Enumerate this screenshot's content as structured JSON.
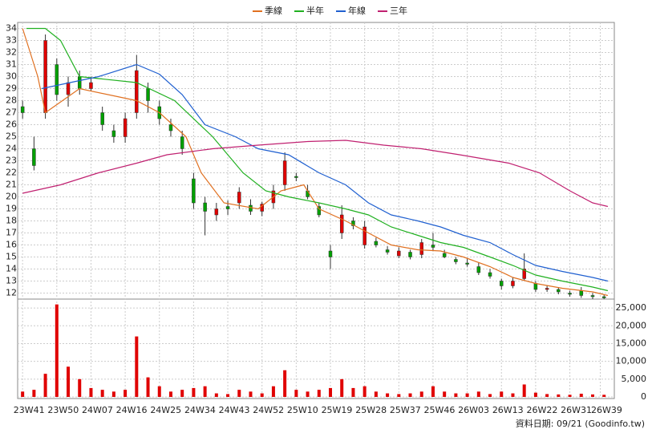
{
  "chart_data": {
    "type": "candlestick",
    "x": [
      0,
      3,
      6,
      9,
      12,
      15,
      18,
      21,
      24,
      27,
      30,
      33,
      36,
      39,
      42,
      45,
      48,
      51,
      54,
      57,
      60,
      63,
      66,
      69,
      72,
      75,
      78,
      81,
      84,
      87,
      90,
      93,
      96,
      99,
      102,
      105,
      108,
      111,
      114,
      117,
      120,
      123,
      126,
      129,
      132,
      135,
      138,
      141,
      144,
      147,
      150,
      153
    ],
    "open": [
      27.5,
      24,
      27,
      31,
      28.5,
      30,
      29,
      27,
      25.5,
      25,
      27,
      29,
      27.5,
      26,
      25,
      21.5,
      19.5,
      18.5,
      19.2,
      19.5,
      19.3,
      18.8,
      19.5,
      21,
      21.7,
      20.5,
      19.2,
      15.5,
      17,
      18,
      16,
      16.3,
      15.6,
      15.1,
      15.4,
      15.2,
      16,
      15.3,
      14.8,
      14.5,
      14.2,
      13.7,
      13,
      12.6,
      13.2,
      12.8,
      12.3,
      12.3,
      12,
      12.2,
      11.8,
      11.7
    ],
    "high": [
      28,
      25,
      33.5,
      31.5,
      30,
      30.5,
      30,
      27.5,
      26,
      27,
      31.8,
      29.5,
      28,
      26.5,
      25.5,
      22,
      20,
      19.5,
      19.7,
      20.8,
      19.8,
      19.6,
      21,
      23.7,
      22,
      21,
      19.5,
      16,
      19.3,
      18.3,
      18,
      16.6,
      15.9,
      15.8,
      15.6,
      16.5,
      17,
      15.6,
      15,
      14.9,
      14.5,
      14,
      13.2,
      13.3,
      15.3,
      13,
      12.6,
      12.5,
      12.2,
      12.5,
      12,
      11.9
    ],
    "low": [
      26.5,
      22.2,
      26.5,
      28,
      27.5,
      28.5,
      28.8,
      25.5,
      24.5,
      24.5,
      26.5,
      27,
      26,
      25,
      23.5,
      19,
      16.8,
      18,
      18.5,
      19,
      18.5,
      18.4,
      19,
      20.5,
      21.3,
      19.8,
      18.3,
      14,
      16.5,
      17.3,
      15.7,
      15.8,
      15.2,
      14.9,
      14.8,
      14.9,
      15.5,
      14.9,
      14.4,
      14.2,
      13.5,
      13.2,
      12.3,
      12.4,
      13,
      12.1,
      12.1,
      11.9,
      11.7,
      11.6,
      11.5,
      11.5
    ],
    "close": [
      27,
      22.6,
      33,
      28.5,
      29.5,
      29,
      29.5,
      26,
      25,
      26.5,
      30.5,
      28,
      26.5,
      25.5,
      24,
      19.5,
      18.8,
      19,
      19,
      20.4,
      18.8,
      19.4,
      20.5,
      23,
      21.6,
      20,
      18.5,
      15,
      18.5,
      17.6,
      17.5,
      16,
      15.4,
      15.5,
      15,
      16.2,
      15.8,
      15,
      14.6,
      14.4,
      13.7,
      13.4,
      12.6,
      13,
      14,
      12.3,
      12.4,
      12.1,
      11.9,
      11.8,
      11.7,
      11.6
    ],
    "volume": [
      1500,
      2000,
      6500,
      26000,
      8500,
      5000,
      2500,
      2000,
      1500,
      2000,
      17000,
      5500,
      3000,
      1500,
      2000,
      2500,
      3000,
      1000,
      800,
      2000,
      1500,
      1000,
      3000,
      7500,
      2000,
      1500,
      2000,
      2500,
      5000,
      2500,
      3000,
      1500,
      1000,
      800,
      1000,
      1500,
      3000,
      1500,
      1000,
      1000,
      1500,
      800,
      1500,
      1000,
      3500,
      1200,
      800,
      700,
      600,
      900,
      700,
      600
    ],
    "up_color": "#e00000",
    "down_color": "#00a000",
    "volume_color": "#e00000",
    "series": [
      {
        "name": "季線",
        "color": "#e07020",
        "x": [
          0,
          4,
          6,
          15,
          30,
          36,
          43,
          47,
          53,
          62,
          68,
          74,
          78,
          85,
          91,
          97,
          104,
          110,
          116,
          123,
          129,
          135,
          142,
          150,
          154
        ],
        "values": [
          34,
          30,
          27,
          29,
          28,
          27,
          25,
          22,
          19.5,
          19,
          20.5,
          21,
          19,
          18,
          17,
          16,
          15.6,
          15.5,
          15,
          14.2,
          13.3,
          12.8,
          12.4,
          12.1,
          11.8
        ]
      },
      {
        "name": "半年",
        "color": "#20b020",
        "x": [
          1,
          6,
          10,
          15,
          30,
          40,
          50,
          58,
          64,
          70,
          78,
          85,
          91,
          97,
          104,
          110,
          116,
          123,
          129,
          135,
          142,
          150,
          154
        ],
        "values": [
          34,
          34,
          33,
          30,
          29.5,
          28,
          25,
          22,
          20.5,
          20,
          19.5,
          19,
          18.5,
          17.5,
          16.8,
          16.2,
          15.8,
          15,
          14.3,
          13.5,
          13,
          12.5,
          12.2
        ]
      },
      {
        "name": "年線",
        "color": "#2060d0",
        "x": [
          5,
          20,
          30,
          36,
          42,
          48,
          56,
          62,
          70,
          78,
          85,
          91,
          97,
          104,
          110,
          116,
          123,
          129,
          135,
          142,
          150,
          154
        ],
        "values": [
          29,
          30,
          31,
          30.2,
          28.5,
          26,
          25,
          24,
          23.5,
          22,
          21,
          19.5,
          18.5,
          18,
          17.5,
          16.8,
          16.2,
          15.2,
          14.3,
          13.8,
          13.3,
          13
        ]
      },
      {
        "name": "三年",
        "color": "#c02070",
        "x": [
          0,
          10,
          20,
          30,
          38,
          50,
          62,
          75,
          85,
          95,
          105,
          115,
          128,
          136,
          144,
          150,
          154
        ],
        "values": [
          20.3,
          21,
          22,
          22.8,
          23.5,
          24,
          24.3,
          24.6,
          24.7,
          24.3,
          24,
          23.5,
          22.8,
          22,
          20.5,
          19.5,
          19.2
        ]
      }
    ],
    "xlim": [
      -1.3,
      155.7
    ],
    "xticks": [
      {
        "value": 0,
        "label": "23W41"
      },
      {
        "value": 9,
        "label": "23W50"
      },
      {
        "value": 18,
        "label": "24W07"
      },
      {
        "value": 27,
        "label": "24W16"
      },
      {
        "value": 36,
        "label": "24W25"
      },
      {
        "value": 45,
        "label": "24W34"
      },
      {
        "value": 54,
        "label": "24W43"
      },
      {
        "value": 63,
        "label": "24W52"
      },
      {
        "value": 72,
        "label": "25W10"
      },
      {
        "value": 81,
        "label": "25W19"
      },
      {
        "value": 90,
        "label": "25W28"
      },
      {
        "value": 99,
        "label": "25W37"
      },
      {
        "value": 108,
        "label": "25W46"
      },
      {
        "value": 117,
        "label": "26W03"
      },
      {
        "value": 126,
        "label": "26W13"
      },
      {
        "value": 135,
        "label": "26W22"
      },
      {
        "value": 144,
        "label": "26W31"
      },
      {
        "value": 152,
        "label": "26W39"
      }
    ],
    "ylim": [
      11.5,
      34.5
    ],
    "yticks": [
      12,
      13,
      14,
      15,
      16,
      17,
      18,
      19,
      20,
      21,
      22,
      23,
      24,
      25,
      26,
      27,
      28,
      29,
      30,
      31,
      32,
      33,
      34
    ],
    "y2lim": [
      0,
      27500
    ],
    "y2ticks": [
      0,
      {
        "value": 5000,
        "label": "5,000"
      },
      {
        "value": 10000,
        "label": "10,000"
      },
      {
        "value": 15000,
        "label": "15,000"
      },
      {
        "value": 20000,
        "label": "20,000"
      },
      {
        "value": 25000,
        "label": "25,000"
      }
    ],
    "grid": true,
    "source": "資料日期: 09/21 (Goodinfo.tw)"
  }
}
